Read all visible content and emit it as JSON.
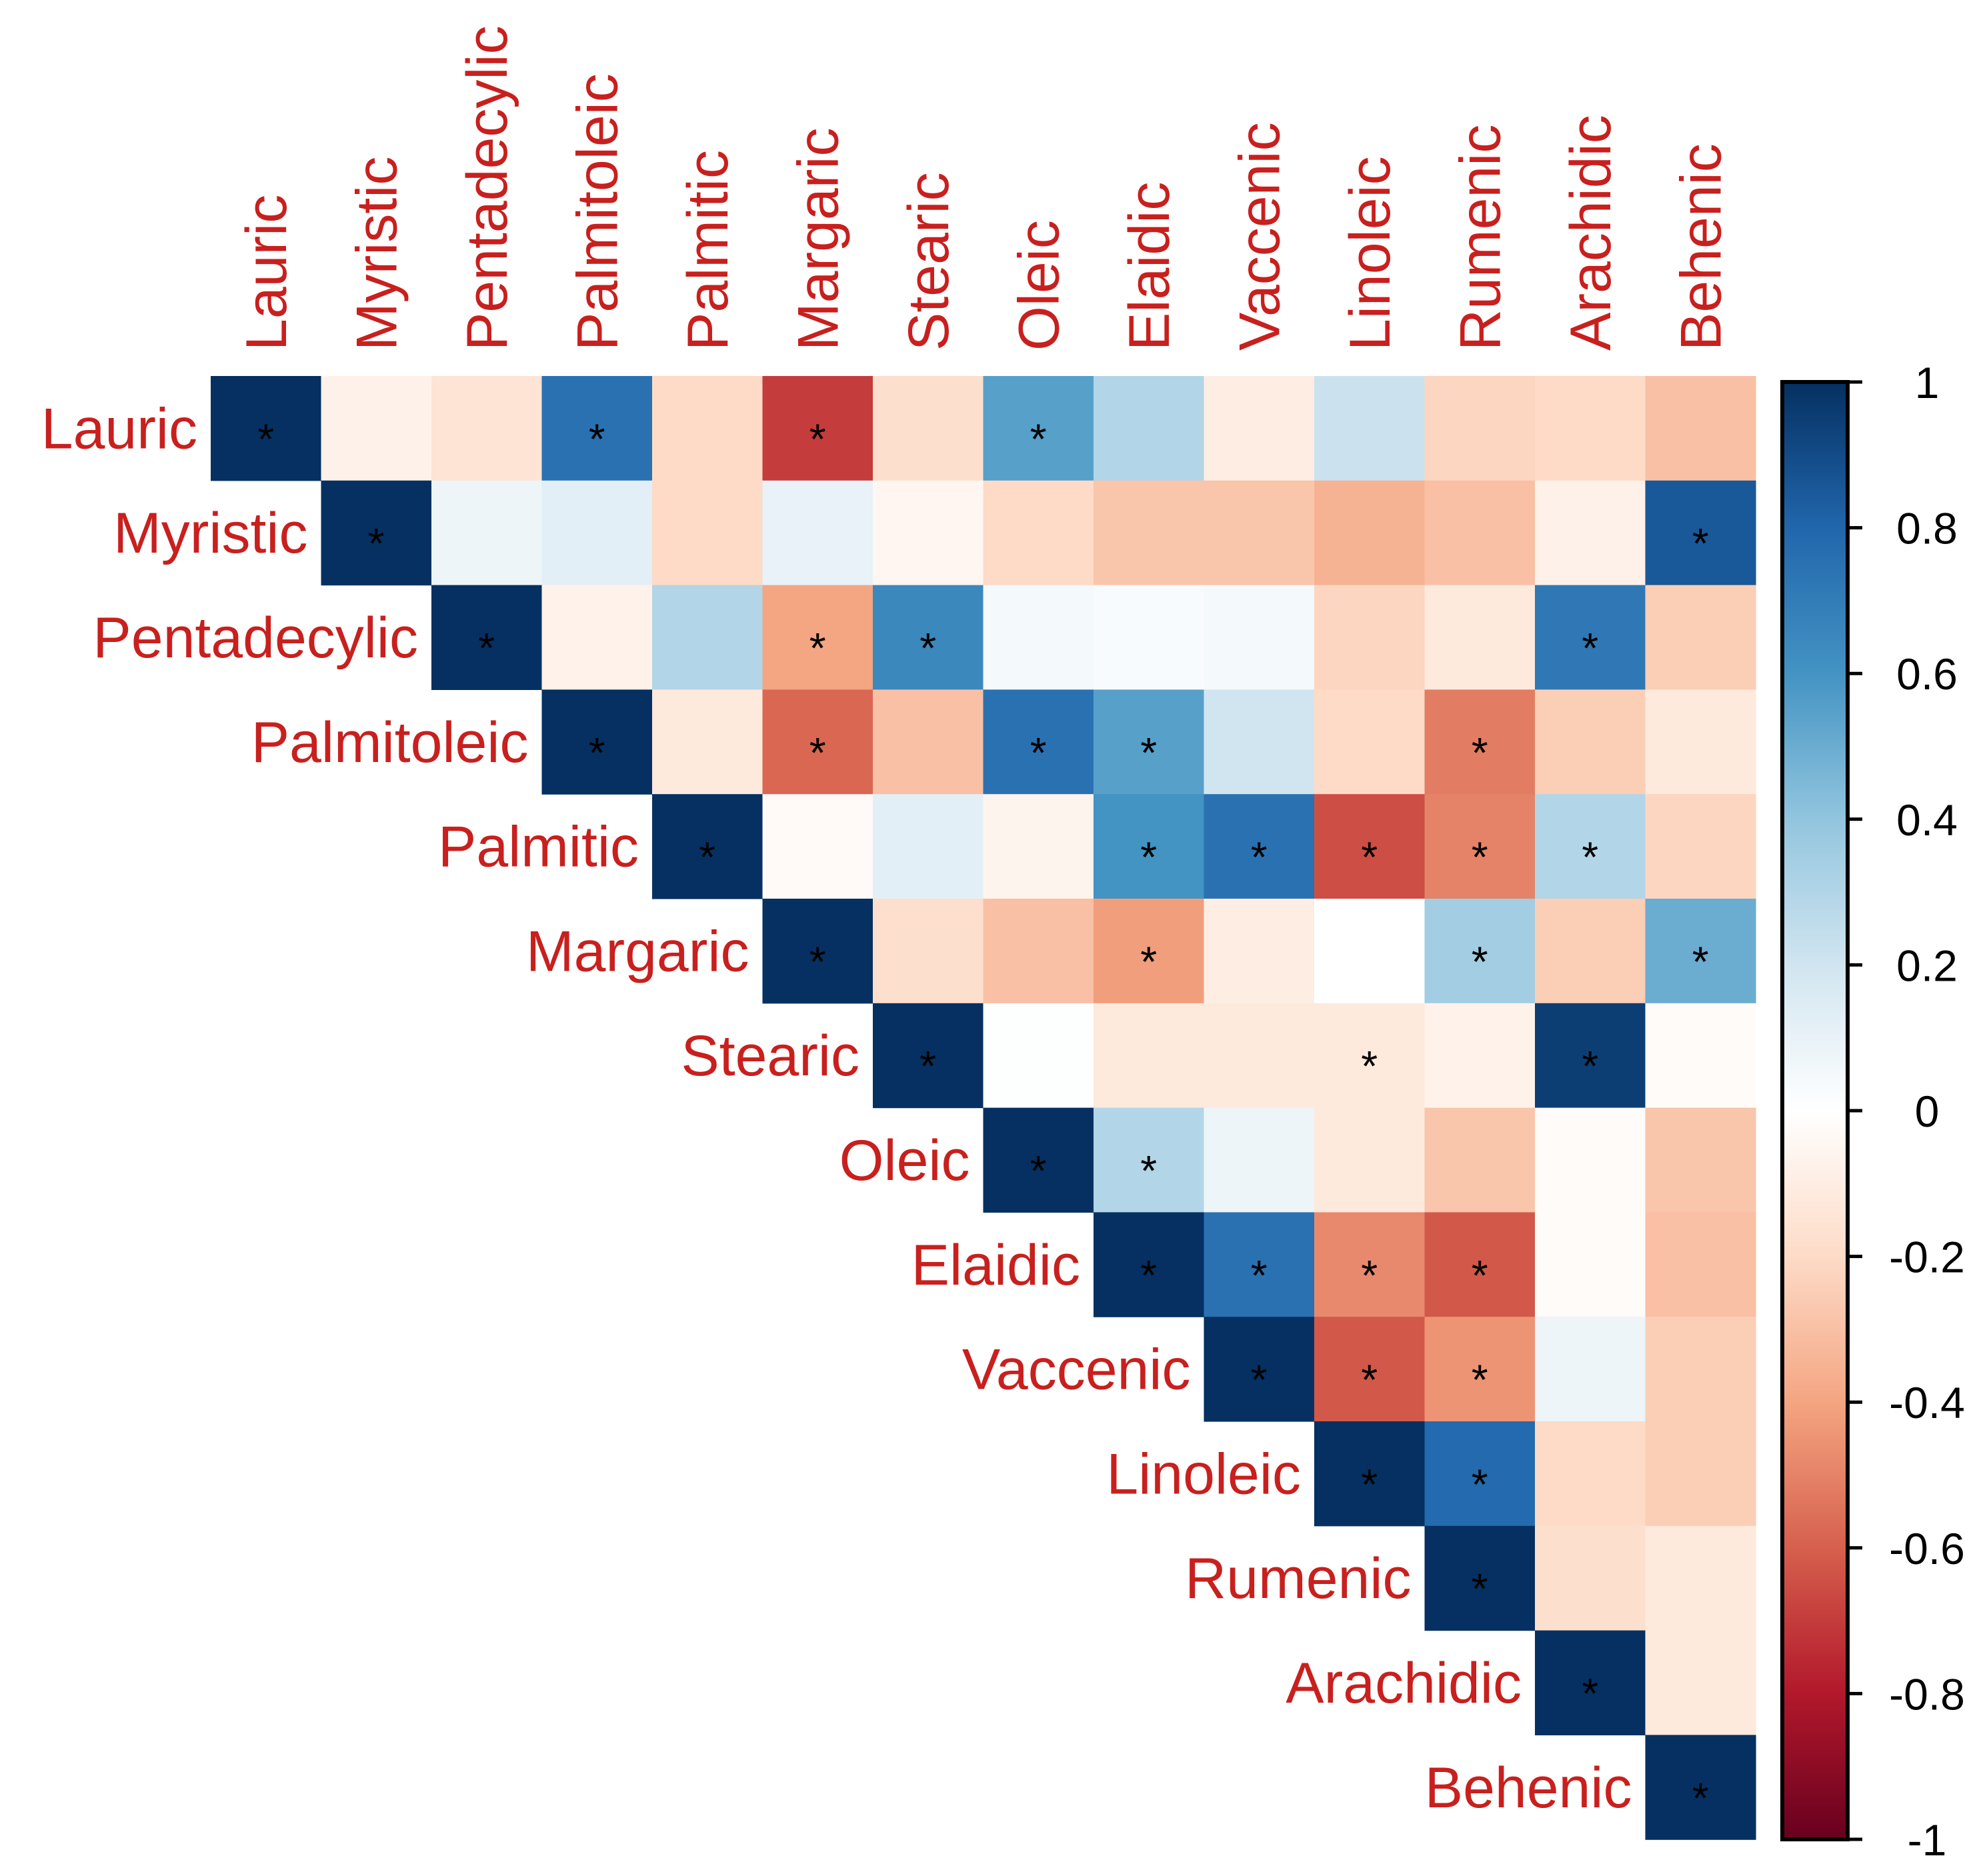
{
  "chart_data": {
    "type": "heatmap",
    "title": "",
    "layout": "upper-triangle correlation matrix",
    "variables": [
      "Lauric",
      "Myristic",
      "Pentadecylic",
      "Palmitoleic",
      "Palmitic",
      "Margaric",
      "Stearic",
      "Oleic",
      "Elaidic",
      "Vaccenic",
      "Linoleic",
      "Rumenic",
      "Arachidic",
      "Behenic"
    ],
    "rows": [
      {
        "name": "Lauric",
        "values": [
          1,
          -0.08,
          -0.15,
          0.75,
          -0.2,
          -0.7,
          -0.18,
          0.55,
          0.3,
          -0.1,
          0.22,
          -0.22,
          -0.2,
          -0.3
        ],
        "significant": [
          1,
          0,
          0,
          1,
          0,
          1,
          0,
          1,
          0,
          0,
          0,
          0,
          0,
          0
        ]
      },
      {
        "name": "Myristic",
        "values": [
          1,
          0.08,
          0.12,
          -0.2,
          0.1,
          -0.05,
          -0.2,
          -0.28,
          -0.28,
          -0.35,
          -0.3,
          -0.08,
          0.85
        ],
        "significant": [
          1,
          0,
          0,
          0,
          0,
          0,
          0,
          0,
          0,
          0,
          0,
          0,
          1
        ]
      },
      {
        "name": "Pentadecylic",
        "values": [
          1,
          -0.07,
          0.3,
          -0.4,
          0.65,
          0.05,
          0.03,
          0.05,
          -0.22,
          -0.12,
          0.72,
          -0.25
        ],
        "significant": [
          1,
          0,
          0,
          1,
          1,
          0,
          0,
          0,
          0,
          0,
          1,
          0
        ]
      },
      {
        "name": "Palmitoleic",
        "values": [
          1,
          -0.12,
          -0.58,
          -0.3,
          0.75,
          0.55,
          0.2,
          -0.2,
          -0.52,
          -0.25,
          -0.12
        ],
        "significant": [
          1,
          0,
          1,
          0,
          1,
          1,
          0,
          0,
          1,
          0,
          0
        ]
      },
      {
        "name": "Palmitic",
        "values": [
          1,
          -0.03,
          0.12,
          -0.06,
          0.6,
          0.75,
          -0.65,
          -0.5,
          0.3,
          -0.22
        ],
        "significant": [
          1,
          0,
          0,
          0,
          1,
          1,
          1,
          1,
          1,
          0
        ]
      },
      {
        "name": "Margaric",
        "values": [
          1,
          -0.18,
          -0.3,
          -0.42,
          -0.1,
          0.0,
          0.35,
          -0.25,
          0.5
        ],
        "significant": [
          1,
          0,
          0,
          1,
          0,
          0,
          1,
          0,
          1
        ]
      },
      {
        "name": "Stearic",
        "values": [
          1,
          0.01,
          -0.12,
          -0.12,
          -0.12,
          -0.07,
          0.95,
          -0.02
        ],
        "significant": [
          1,
          0,
          0,
          0,
          1,
          0,
          1,
          0
        ]
      },
      {
        "name": "Oleic",
        "values": [
          1,
          0.3,
          0.08,
          -0.12,
          -0.28,
          -0.02,
          -0.28
        ],
        "significant": [
          1,
          1,
          0,
          0,
          0,
          0,
          0
        ]
      },
      {
        "name": "Elaidic",
        "values": [
          1,
          0.75,
          -0.48,
          -0.62,
          -0.02,
          -0.3
        ],
        "significant": [
          1,
          1,
          1,
          1,
          0,
          0
        ]
      },
      {
        "name": "Vaccenic",
        "values": [
          1,
          -0.62,
          -0.45,
          0.08,
          -0.25
        ],
        "significant": [
          1,
          1,
          1,
          0,
          0
        ]
      },
      {
        "name": "Linoleic",
        "values": [
          1,
          0.78,
          -0.2,
          -0.25
        ],
        "significant": [
          1,
          1,
          0,
          0
        ]
      },
      {
        "name": "Rumenic",
        "values": [
          1,
          -0.18,
          -0.12
        ],
        "significant": [
          1,
          0,
          0
        ]
      },
      {
        "name": "Arachidic",
        "values": [
          1,
          -0.12
        ],
        "significant": [
          1,
          0
        ]
      },
      {
        "name": "Behenic",
        "values": [
          1
        ],
        "significant": [
          1
        ]
      }
    ],
    "significance_marker": "*",
    "colorbar": {
      "range": [
        -1,
        1
      ],
      "ticks": [
        "1",
        "0.8",
        "0.6",
        "0.4",
        "0.2",
        "0",
        "-0.2",
        "-0.4",
        "-0.6",
        "-0.8",
        "-1"
      ]
    },
    "colors": [
      "#67001F",
      "#B2182B",
      "#D6604D",
      "#F4A582",
      "#FDDBC7",
      "#FFFFFF",
      "#D1E5F0",
      "#92C5DE",
      "#4393C3",
      "#2166AC",
      "#053061"
    ],
    "label_color": "#c8201e"
  }
}
